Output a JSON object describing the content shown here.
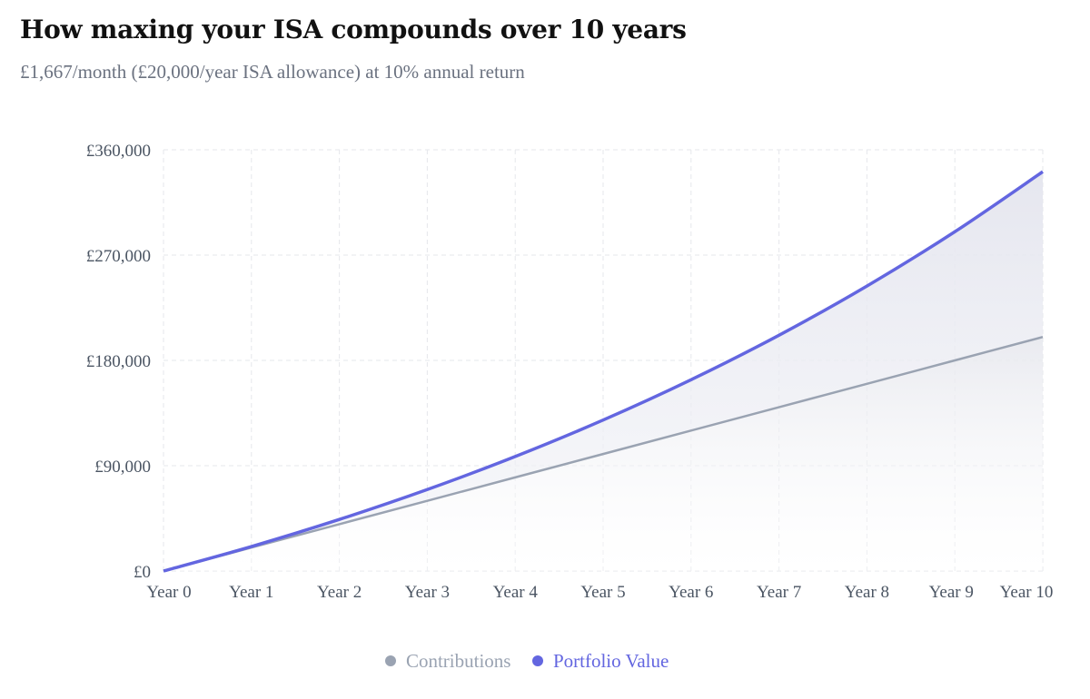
{
  "title": "How maxing your ISA compounds over 10 years",
  "subtitle": "£1,667/month (£20,000/year ISA allowance) at 10% annual return",
  "colors": {
    "contributions": "#9aa3b2",
    "portfolio": "#6366e0",
    "grid": "#e5e7eb",
    "fill": "#e6e7f0"
  },
  "chart_data": {
    "type": "area",
    "categories": [
      "Year 0",
      "Year 1",
      "Year 2",
      "Year 3",
      "Year 4",
      "Year 5",
      "Year 6",
      "Year 7",
      "Year 8",
      "Year 9",
      "Year 10"
    ],
    "series": [
      {
        "name": "Contributions",
        "values": [
          0,
          20000,
          40000,
          60000,
          80000,
          100000,
          120000,
          140000,
          160000,
          180000,
          200000
        ]
      },
      {
        "name": "Portfolio Value",
        "values": [
          0,
          20940,
          44070,
          69620,
          97840,
          129020,
          163460,
          201510,
          243540,
          289980,
          341280
        ]
      }
    ],
    "yticks": [
      "£0",
      "£90,000",
      "£180,000",
      "£270,000",
      "£360,000"
    ],
    "ytick_values": [
      0,
      90000,
      180000,
      270000,
      360000
    ],
    "ylim": [
      0,
      360000
    ],
    "grid": true,
    "legend_position": "bottom-center"
  }
}
